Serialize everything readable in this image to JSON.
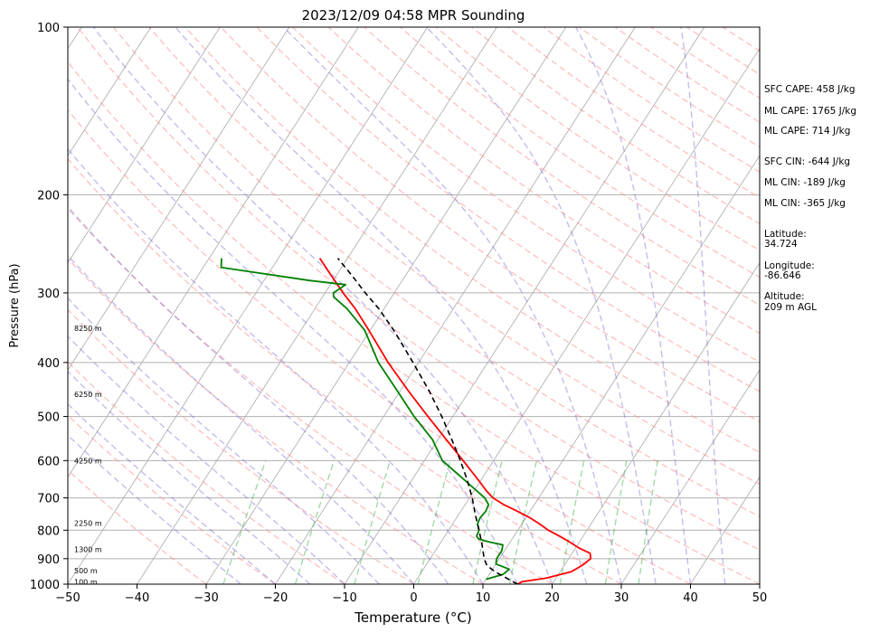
{
  "chart_data": {
    "type": "skew-t",
    "title": "2023/12/09 04:58 MPR Sounding",
    "xlabel": "Temperature (°C)",
    "ylabel": "Pressure (hPa)",
    "xlim": [
      -50,
      50
    ],
    "ylim": [
      1000,
      100
    ],
    "y_scale": "log",
    "grid": true,
    "x_ticks": [
      -50,
      -40,
      -30,
      -20,
      -10,
      0,
      10,
      20,
      30,
      40,
      50
    ],
    "x_tick_labels": [
      "−50",
      "−40",
      "−30",
      "−20",
      "−10",
      "0",
      "10",
      "20",
      "30",
      "40",
      "50"
    ],
    "y_ticks": [
      1000,
      900,
      800,
      700,
      600,
      500,
      400,
      300,
      200,
      100
    ],
    "y_tick_labels": [
      "1000",
      "900",
      "800",
      "700",
      "600",
      "500",
      "400",
      "300",
      "200",
      "100"
    ],
    "isotherms": [
      -120,
      -110,
      -100,
      -90,
      -80,
      -70,
      -60,
      -50,
      -40,
      -30,
      -20,
      -10,
      0,
      10,
      20,
      30,
      40,
      50
    ],
    "dry_adiabats_theta_c": [
      -30,
      -20,
      -10,
      0,
      10,
      20,
      30,
      40,
      50,
      60,
      70,
      80,
      90,
      100,
      110,
      120,
      130,
      140,
      150,
      160,
      170,
      180,
      190,
      200,
      210,
      220,
      230,
      240,
      250,
      260
    ],
    "moist_adiabats_start_c": [
      -25,
      -20,
      -15,
      -10,
      -5,
      0,
      5,
      10,
      15,
      20,
      25,
      30,
      35,
      40,
      45
    ],
    "mixing_ratio_lines_gkg": [
      0.4,
      1,
      2,
      4,
      7,
      10,
      16,
      24,
      32
    ],
    "series": [
      {
        "key": "temperature",
        "color": "#ff0000",
        "points": [
          [
            1000,
            15
          ],
          [
            990,
            15.4
          ],
          [
            975,
            18.6
          ],
          [
            950,
            21.6
          ],
          [
            925,
            22.6
          ],
          [
            900,
            23.2
          ],
          [
            880,
            22.6
          ],
          [
            860,
            20.4
          ],
          [
            840,
            18.6
          ],
          [
            820,
            16.6
          ],
          [
            800,
            14.4
          ],
          [
            780,
            12.6
          ],
          [
            760,
            10.6
          ],
          [
            740,
            8.2
          ],
          [
            720,
            5.6
          ],
          [
            700,
            3.4
          ],
          [
            680,
            1.8
          ],
          [
            650,
            -0.4
          ],
          [
            600,
            -4.4
          ],
          [
            550,
            -8.8
          ],
          [
            500,
            -13.6
          ],
          [
            450,
            -18.8
          ],
          [
            400,
            -24.4
          ],
          [
            350,
            -30.2
          ],
          [
            320,
            -34.2
          ],
          [
            300,
            -37.4
          ],
          [
            280,
            -40.6
          ],
          [
            260,
            -44
          ]
        ]
      },
      {
        "key": "dewpoint",
        "color": "#008000",
        "points": [
          [
            980,
            10
          ],
          [
            960,
            12
          ],
          [
            940,
            12.4
          ],
          [
            920,
            10
          ],
          [
            900,
            9.6
          ],
          [
            870,
            9.6
          ],
          [
            850,
            9.2
          ],
          [
            840,
            7
          ],
          [
            830,
            5.2
          ],
          [
            820,
            4.6
          ],
          [
            800,
            4.4
          ],
          [
            780,
            3.6
          ],
          [
            760,
            3.4
          ],
          [
            740,
            3.6
          ],
          [
            720,
            3.4
          ],
          [
            700,
            2.2
          ],
          [
            650,
            -2.4
          ],
          [
            600,
            -7.4
          ],
          [
            550,
            -10.8
          ],
          [
            500,
            -15.6
          ],
          [
            450,
            -20.4
          ],
          [
            400,
            -25.8
          ],
          [
            350,
            -30.8
          ],
          [
            320,
            -35.4
          ],
          [
            305,
            -38.4
          ],
          [
            300,
            -38.8
          ],
          [
            290,
            -37.8
          ],
          [
            285,
            -43.4
          ],
          [
            270,
            -57.4
          ],
          [
            260,
            -58.2
          ]
        ]
      },
      {
        "key": "parcel",
        "color": "#000000",
        "points": [
          [
            1000,
            15
          ],
          [
            950,
            10.6
          ],
          [
            925,
            8.8
          ],
          [
            900,
            7.8
          ],
          [
            850,
            6.2
          ],
          [
            800,
            4.4
          ],
          [
            750,
            2.4
          ],
          [
            700,
            0.4
          ],
          [
            650,
            -2
          ],
          [
            600,
            -4.8
          ],
          [
            550,
            -8
          ],
          [
            500,
            -11.6
          ],
          [
            450,
            -15.8
          ],
          [
            400,
            -20.8
          ],
          [
            350,
            -26.6
          ],
          [
            320,
            -30.8
          ],
          [
            300,
            -34.2
          ],
          [
            280,
            -37.6
          ],
          [
            260,
            -41.4
          ]
        ]
      }
    ],
    "height_labels": [
      {
        "text": "100 m",
        "p": 990
      },
      {
        "text": "500 m",
        "p": 945
      },
      {
        "text": "1300 m",
        "p": 866
      },
      {
        "text": "2250 m",
        "p": 777
      },
      {
        "text": "4250 m",
        "p": 600
      },
      {
        "text": "6250 m",
        "p": 456
      },
      {
        "text": "8250 m",
        "p": 347
      }
    ]
  },
  "info": {
    "sfc_cape": "SFC CAPE: 458 J/kg",
    "ml_cape_1": "ML CAPE: 1765 J/kg",
    "ml_cape_2": "ML CAPE: 714 J/kg",
    "sfc_cin": "SFC CIN: -644 J/kg",
    "ml_cin_1": "ML CIN: -189 J/kg",
    "ml_cin_2": "ML CIN: -365 J/kg",
    "latitude_label": "Latitude:",
    "latitude_value": "34.724",
    "longitude_label": "Longitude:",
    "longitude_value": "-86.646",
    "altitude_label": "Altitude:",
    "altitude_value": "209 m AGL"
  }
}
